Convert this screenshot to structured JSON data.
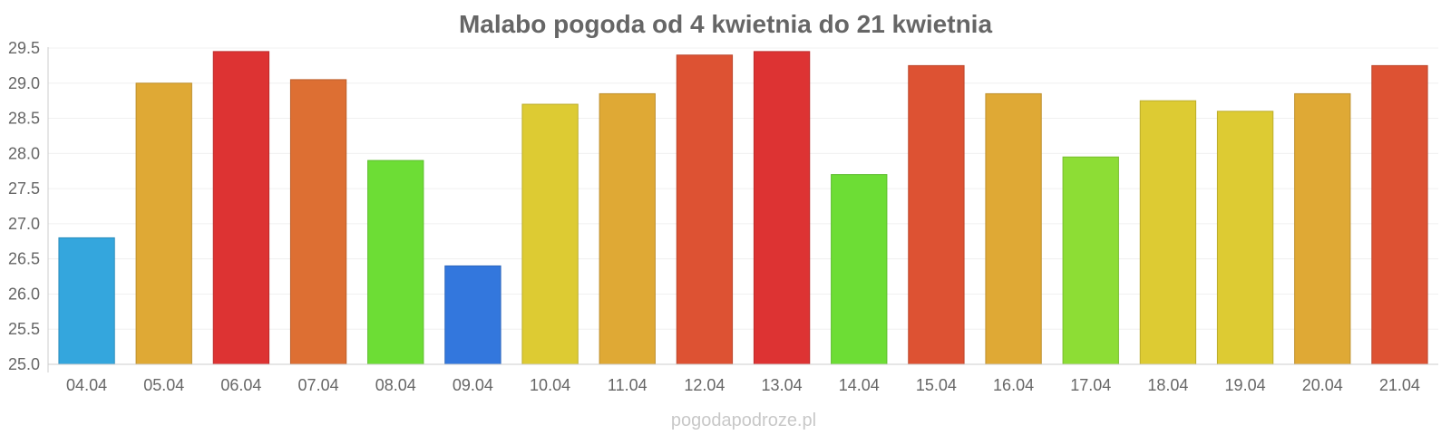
{
  "chart_data": {
    "type": "bar",
    "title": "Malabo pogoda od 4 kwietnia do 21 kwietnia",
    "xlabel": "",
    "ylabel": "",
    "ylim": [
      25.0,
      29.5
    ],
    "yticks": [
      "25.0",
      "25.5",
      "26.0",
      "26.5",
      "27.0",
      "27.5",
      "28.0",
      "28.5",
      "29.0",
      "29.5"
    ],
    "grid": true,
    "legend": "none",
    "categories": [
      "04.04",
      "05.04",
      "06.04",
      "07.04",
      "08.04",
      "09.04",
      "10.04",
      "11.04",
      "12.04",
      "13.04",
      "14.04",
      "15.04",
      "16.04",
      "17.04",
      "18.04",
      "19.04",
      "20.04",
      "21.04"
    ],
    "values": [
      26.8,
      29.0,
      29.45,
      29.05,
      27.9,
      26.4,
      28.7,
      28.85,
      29.4,
      29.45,
      27.7,
      29.25,
      28.85,
      27.95,
      28.75,
      28.6,
      28.85,
      29.25
    ],
    "colors": [
      "#34a6dd",
      "#dfa935",
      "#dd3333",
      "#dd6f33",
      "#6ddd35",
      "#3377dd",
      "#ddcb33",
      "#dfa935",
      "#dd5233",
      "#dd3333",
      "#6ddd35",
      "#dd5233",
      "#dfa935",
      "#8ddd35",
      "#ddcb33",
      "#ddcb33",
      "#dfa935",
      "#dd5233"
    ]
  },
  "watermark": "pogodapodroze.pl"
}
